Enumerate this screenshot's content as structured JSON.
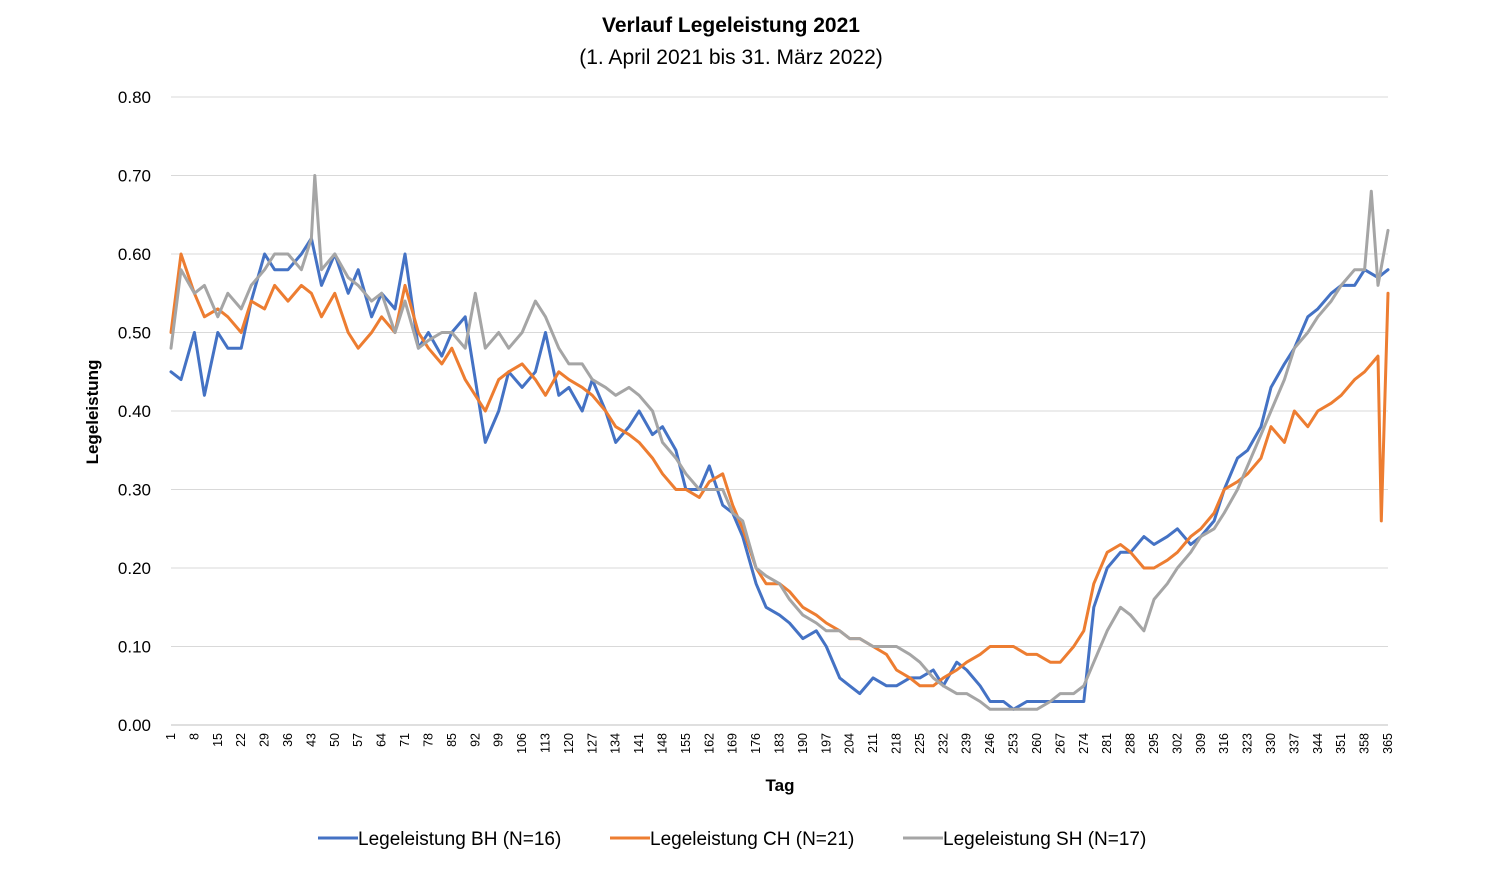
{
  "chart_data": {
    "type": "line",
    "title": "Verlauf Legeleistung 2021",
    "subtitle": "(1. April 2021 bis 31. März 2022)",
    "xlabel": "Tag",
    "ylabel": "Legeleistung",
    "ylim": [
      0,
      0.8
    ],
    "xlim": [
      1,
      365
    ],
    "y_ticks": [
      "0.00",
      "0.10",
      "0.20",
      "0.30",
      "0.40",
      "0.50",
      "0.60",
      "0.70",
      "0.80"
    ],
    "x_ticks": [
      1,
      8,
      15,
      22,
      29,
      36,
      43,
      50,
      57,
      64,
      71,
      78,
      85,
      92,
      99,
      106,
      113,
      120,
      127,
      134,
      141,
      148,
      155,
      162,
      169,
      176,
      183,
      190,
      197,
      204,
      211,
      218,
      225,
      232,
      239,
      246,
      253,
      260,
      267,
      274,
      281,
      288,
      295,
      302,
      309,
      316,
      323,
      330,
      337,
      344,
      351,
      358,
      365
    ],
    "grid": true,
    "legend_position": "bottom",
    "series": [
      {
        "name": "Legeleistung BH (N=16)",
        "color": "#4472C4",
        "x": [
          1,
          4,
          8,
          11,
          15,
          18,
          22,
          25,
          29,
          32,
          36,
          40,
          43,
          46,
          50,
          54,
          57,
          61,
          64,
          68,
          71,
          75,
          78,
          82,
          85,
          89,
          92,
          95,
          99,
          102,
          106,
          110,
          113,
          117,
          120,
          124,
          127,
          131,
          134,
          138,
          141,
          145,
          148,
          152,
          155,
          159,
          162,
          166,
          169,
          172,
          176,
          179,
          183,
          186,
          190,
          194,
          197,
          201,
          204,
          207,
          211,
          215,
          218,
          222,
          225,
          229,
          232,
          236,
          239,
          243,
          246,
          250,
          253,
          257,
          260,
          264,
          267,
          271,
          274,
          277,
          281,
          285,
          288,
          292,
          295,
          299,
          302,
          306,
          309,
          313,
          316,
          320,
          323,
          327,
          330,
          334,
          337,
          341,
          344,
          348,
          351,
          355,
          358,
          362,
          365
        ],
        "y": [
          0.45,
          0.44,
          0.5,
          0.42,
          0.5,
          0.48,
          0.48,
          0.54,
          0.6,
          0.58,
          0.58,
          0.6,
          0.62,
          0.56,
          0.6,
          0.55,
          0.58,
          0.52,
          0.55,
          0.53,
          0.6,
          0.48,
          0.5,
          0.47,
          0.5,
          0.52,
          0.44,
          0.36,
          0.4,
          0.45,
          0.43,
          0.45,
          0.5,
          0.42,
          0.43,
          0.4,
          0.44,
          0.4,
          0.36,
          0.38,
          0.4,
          0.37,
          0.38,
          0.35,
          0.3,
          0.3,
          0.33,
          0.28,
          0.27,
          0.24,
          0.18,
          0.15,
          0.14,
          0.13,
          0.11,
          0.12,
          0.1,
          0.06,
          0.05,
          0.04,
          0.06,
          0.05,
          0.05,
          0.06,
          0.06,
          0.07,
          0.05,
          0.08,
          0.07,
          0.05,
          0.03,
          0.03,
          0.02,
          0.03,
          0.03,
          0.03,
          0.03,
          0.03,
          0.03,
          0.15,
          0.2,
          0.22,
          0.22,
          0.24,
          0.23,
          0.24,
          0.25,
          0.23,
          0.24,
          0.26,
          0.3,
          0.34,
          0.35,
          0.38,
          0.43,
          0.46,
          0.48,
          0.52,
          0.53,
          0.55,
          0.56,
          0.56,
          0.58,
          0.57,
          0.58
        ]
      },
      {
        "name": "Legeleistung CH (N=21)",
        "color": "#ED7D31",
        "x": [
          1,
          4,
          8,
          11,
          15,
          18,
          22,
          25,
          29,
          32,
          36,
          40,
          43,
          46,
          50,
          54,
          57,
          61,
          64,
          68,
          71,
          75,
          78,
          82,
          85,
          89,
          92,
          95,
          99,
          102,
          106,
          110,
          113,
          117,
          120,
          124,
          127,
          131,
          134,
          138,
          141,
          145,
          148,
          152,
          155,
          159,
          162,
          166,
          169,
          172,
          176,
          179,
          183,
          186,
          190,
          194,
          197,
          201,
          204,
          207,
          211,
          215,
          218,
          222,
          225,
          229,
          232,
          236,
          239,
          243,
          246,
          250,
          253,
          257,
          260,
          264,
          267,
          271,
          274,
          277,
          281,
          285,
          288,
          292,
          295,
          299,
          302,
          306,
          309,
          313,
          316,
          320,
          323,
          327,
          330,
          334,
          337,
          341,
          344,
          348,
          351,
          355,
          358,
          362,
          363,
          365
        ],
        "y": [
          0.5,
          0.6,
          0.55,
          0.52,
          0.53,
          0.52,
          0.5,
          0.54,
          0.53,
          0.56,
          0.54,
          0.56,
          0.55,
          0.52,
          0.55,
          0.5,
          0.48,
          0.5,
          0.52,
          0.5,
          0.56,
          0.5,
          0.48,
          0.46,
          0.48,
          0.44,
          0.42,
          0.4,
          0.44,
          0.45,
          0.46,
          0.44,
          0.42,
          0.45,
          0.44,
          0.43,
          0.42,
          0.4,
          0.38,
          0.37,
          0.36,
          0.34,
          0.32,
          0.3,
          0.3,
          0.29,
          0.31,
          0.32,
          0.28,
          0.25,
          0.2,
          0.18,
          0.18,
          0.17,
          0.15,
          0.14,
          0.13,
          0.12,
          0.11,
          0.11,
          0.1,
          0.09,
          0.07,
          0.06,
          0.05,
          0.05,
          0.06,
          0.07,
          0.08,
          0.09,
          0.1,
          0.1,
          0.1,
          0.09,
          0.09,
          0.08,
          0.08,
          0.1,
          0.12,
          0.18,
          0.22,
          0.23,
          0.22,
          0.2,
          0.2,
          0.21,
          0.22,
          0.24,
          0.25,
          0.27,
          0.3,
          0.31,
          0.32,
          0.34,
          0.38,
          0.36,
          0.4,
          0.38,
          0.4,
          0.41,
          0.42,
          0.44,
          0.45,
          0.47,
          0.26,
          0.55
        ]
      },
      {
        "name": "Legeleistung SH (N=17)",
        "color": "#A5A5A5",
        "x": [
          1,
          4,
          8,
          11,
          15,
          18,
          22,
          25,
          29,
          32,
          36,
          40,
          43,
          44,
          46,
          50,
          54,
          57,
          61,
          64,
          68,
          71,
          75,
          78,
          82,
          85,
          89,
          92,
          95,
          99,
          102,
          106,
          110,
          113,
          117,
          120,
          124,
          127,
          131,
          134,
          138,
          141,
          145,
          148,
          152,
          155,
          159,
          162,
          166,
          169,
          172,
          176,
          179,
          183,
          186,
          190,
          194,
          197,
          201,
          204,
          207,
          211,
          215,
          218,
          222,
          225,
          229,
          232,
          236,
          239,
          243,
          246,
          250,
          253,
          257,
          260,
          264,
          267,
          271,
          274,
          277,
          281,
          285,
          288,
          292,
          295,
          299,
          302,
          306,
          309,
          313,
          316,
          320,
          323,
          327,
          330,
          334,
          337,
          341,
          344,
          348,
          351,
          355,
          358,
          360,
          362,
          365
        ],
        "y": [
          0.48,
          0.58,
          0.55,
          0.56,
          0.52,
          0.55,
          0.53,
          0.56,
          0.58,
          0.6,
          0.6,
          0.58,
          0.62,
          0.7,
          0.58,
          0.6,
          0.57,
          0.56,
          0.54,
          0.55,
          0.5,
          0.54,
          0.48,
          0.49,
          0.5,
          0.5,
          0.48,
          0.55,
          0.48,
          0.5,
          0.48,
          0.5,
          0.54,
          0.52,
          0.48,
          0.46,
          0.46,
          0.44,
          0.43,
          0.42,
          0.43,
          0.42,
          0.4,
          0.36,
          0.34,
          0.32,
          0.3,
          0.3,
          0.3,
          0.27,
          0.26,
          0.2,
          0.19,
          0.18,
          0.16,
          0.14,
          0.13,
          0.12,
          0.12,
          0.11,
          0.11,
          0.1,
          0.1,
          0.1,
          0.09,
          0.08,
          0.06,
          0.05,
          0.04,
          0.04,
          0.03,
          0.02,
          0.02,
          0.02,
          0.02,
          0.02,
          0.03,
          0.04,
          0.04,
          0.05,
          0.08,
          0.12,
          0.15,
          0.14,
          0.12,
          0.16,
          0.18,
          0.2,
          0.22,
          0.24,
          0.25,
          0.27,
          0.3,
          0.33,
          0.37,
          0.4,
          0.44,
          0.48,
          0.5,
          0.52,
          0.54,
          0.56,
          0.58,
          0.58,
          0.68,
          0.56,
          0.63
        ]
      }
    ]
  }
}
